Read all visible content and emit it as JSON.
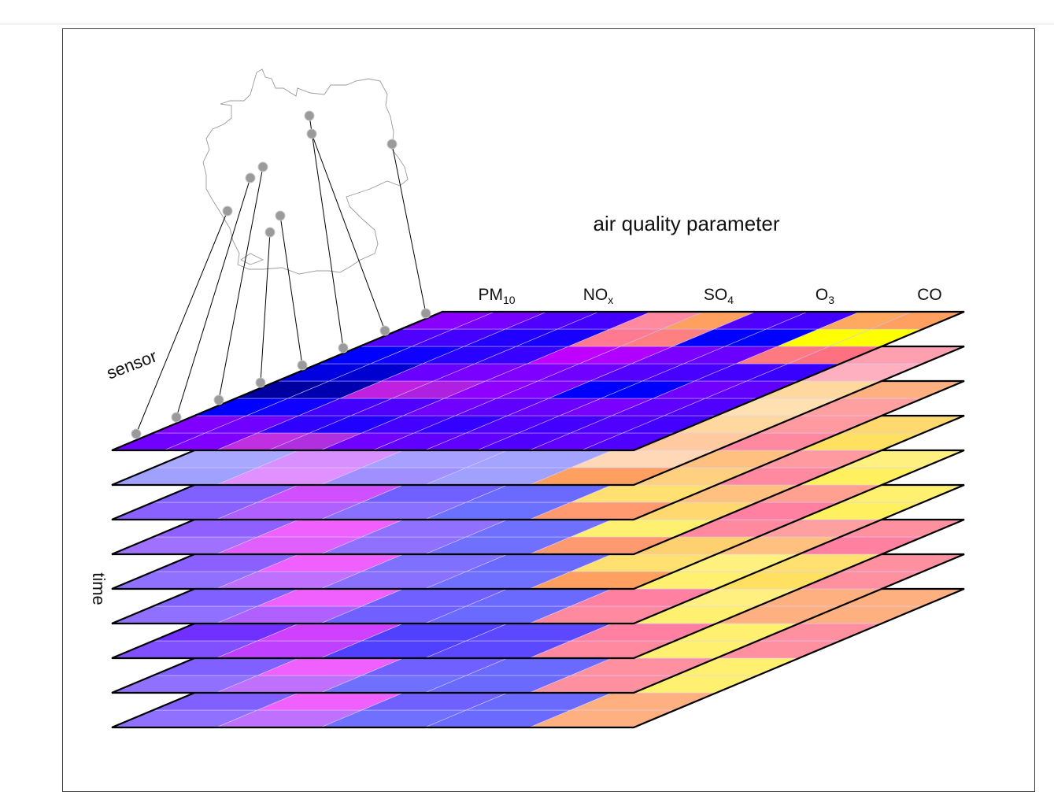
{
  "figure": {
    "title": "air quality parameter",
    "axis_sensor": "sensor",
    "axis_time": "time",
    "parameters": [
      {
        "base": "PM",
        "sub": "10"
      },
      {
        "base": "NO",
        "sub": "x"
      },
      {
        "base": "SO",
        "sub": "4"
      },
      {
        "base": "O",
        "sub": "3"
      },
      {
        "base": "CO",
        "sub": ""
      }
    ],
    "map": "Germany outline with sensor locations",
    "colors": {
      "low": "#0000ff",
      "mid": "#ff00ff",
      "high": "#ffff00",
      "outline": "#000000"
    }
  },
  "top_layer": {
    "rows": [
      [
        [
          "#8a00ff",
          "#7700ff"
        ],
        [
          "#5000ff",
          "#4400ff"
        ],
        [
          "#ff8aa0",
          "#ffa060"
        ],
        [
          "#5000ff",
          "#4400ff"
        ],
        [
          "#ffa860",
          "#ffa060"
        ]
      ],
      [
        [
          "#5000ff",
          "#4400ff"
        ],
        [
          "#2200ff",
          "#1800ff"
        ],
        [
          "#ff7a90",
          "#ff8080"
        ],
        [
          "#0000ff",
          "#0000ff"
        ],
        [
          "#ffff00",
          "#ffff00"
        ]
      ],
      [
        [
          "#0000ff",
          "#1000ff"
        ],
        [
          "#2a00ff",
          "#3800ff"
        ],
        [
          "#c000ff",
          "#b000ff"
        ],
        [
          "#7a00ff",
          "#6a00ff"
        ],
        [
          "#ff7a80",
          "#ff7080"
        ]
      ],
      [
        [
          "#0000e0",
          "#0000d0"
        ],
        [
          "#6a00ff",
          "#7a00ff"
        ],
        [
          "#8000ff",
          "#7000ff"
        ],
        [
          "#5400ff",
          "#4800ff"
        ],
        [
          "#4400ff",
          "#3800ff"
        ]
      ],
      [
        [
          "#0000a0",
          "#0000b0"
        ],
        [
          "#c020e0",
          "#b020e0"
        ],
        [
          "#9000ff",
          "#8000ff"
        ],
        [
          "#0000ff",
          "#0000ff"
        ],
        [
          "#7000ff",
          "#6000ff"
        ]
      ],
      [
        [
          "#0000ff",
          "#1000ff"
        ],
        [
          "#4400ff",
          "#5000ff"
        ],
        [
          "#7000ff",
          "#6000ff"
        ],
        [
          "#6a00ff",
          "#7a00ff"
        ],
        [
          "#6000ff",
          "#5000ff"
        ]
      ],
      [
        [
          "#8000ff",
          "#7000ff"
        ],
        [
          "#3000ff",
          "#2000ff"
        ],
        [
          "#4400ff",
          "#3400ff"
        ],
        [
          "#5000ff",
          "#4400ff"
        ],
        [
          "#5000ff",
          "#4400ff"
        ]
      ],
      [
        [
          "#7000ff",
          "#8000ff"
        ],
        [
          "#c030e0",
          "#b030e0"
        ],
        [
          "#7000ff",
          "#6000ff"
        ],
        [
          "#6000ff",
          "#5000ff"
        ],
        [
          "#6000ff",
          "#5000ff"
        ]
      ]
    ]
  },
  "time_layers": [
    {
      "rows": [
        [
          "#a0a0ff",
          "#e090ff",
          "#a090ff",
          "#a0a0ff",
          "#9a98ff"
        ],
        [
          "#a8a8ff",
          "#d890ff",
          "#a8a0ff",
          "#a4a4ff",
          "#9090ff"
        ]
      ],
      "tail": [
        "#ffa060",
        "#ffd8b8",
        "#ffcaa0",
        "#ffd8a0",
        "#ffe0b0",
        "#ffd8a0",
        "#ffb0c0",
        "#ffa0b0"
      ]
    },
    {
      "rows": [
        [
          "#8a60ff",
          "#b060ff",
          "#8a70ff",
          "#6a70ff",
          "#8060ff"
        ],
        [
          "#8060ff",
          "#d050ff",
          "#7060ff",
          "#6a6aff",
          "#8070ff"
        ]
      ],
      "tail": [
        "#ff9a70",
        "#ffe070",
        "#ffd080",
        "#ffc080",
        "#ff8aa0",
        "#ff9aa0",
        "#ffa0a0",
        "#ffb080"
      ]
    },
    {
      "rows": [
        [
          "#a070ff",
          "#e060ff",
          "#9070ff",
          "#7070ff",
          "#9070ff"
        ],
        [
          "#9060ff",
          "#f060ff",
          "#9070ff",
          "#7070ff",
          "#9060ff"
        ]
      ],
      "tail": [
        "#ff9a70",
        "#fff070",
        "#ffd870",
        "#ffc080",
        "#ff8aa0",
        "#ff9aa0",
        "#ffe060",
        "#ffd870"
      ]
    },
    {
      "rows": [
        [
          "#9070ff",
          "#c070ff",
          "#8a70ff",
          "#7070ff",
          "#9070ff"
        ],
        [
          "#8a60ff",
          "#f060ff",
          "#8070ff",
          "#6a6aff",
          "#9060ff"
        ]
      ],
      "tail": [
        "#ffa060",
        "#ffe070",
        "#ffd070",
        "#ff8aa0",
        "#ff80a0",
        "#ffa090",
        "#fff060",
        "#fff080"
      ]
    },
    {
      "rows": [
        [
          "#9070ff",
          "#b060ff",
          "#7060ff",
          "#6a6aff",
          "#8060ff"
        ],
        [
          "#8060ff",
          "#f060ff",
          "#7060ff",
          "#6a6aff",
          "#9060ff"
        ]
      ],
      "tail": [
        "#ff8aa0",
        "#ff80a0",
        "#fff070",
        "#fff080",
        "#ffc080",
        "#ffa0a0",
        "#fff060",
        "#fff070"
      ]
    },
    {
      "rows": [
        [
          "#8050ff",
          "#c040ff",
          "#5040ff",
          "#5c48ff",
          "#7040ff"
        ],
        [
          "#7030ff",
          "#d040ff",
          "#5040ff",
          "#5c48ff",
          "#7040ff"
        ]
      ],
      "tail": [
        "#ff8aa0",
        "#ff80a0",
        "#fff070",
        "#fff080",
        "#ffe060",
        "#ffe070",
        "#ff80a0",
        "#ff90a0"
      ]
    },
    {
      "rows": [
        [
          "#9070ff",
          "#c070ff",
          "#7070ff",
          "#6a6aff",
          "#8060ff"
        ],
        [
          "#8060ff",
          "#f060ff",
          "#7060ff",
          "#6a6aff",
          "#8060ff"
        ]
      ],
      "tail": [
        "#ff90a0",
        "#ff90a0",
        "#fff070",
        "#fff070",
        "#ffb080",
        "#ffb080",
        "#ff90a0",
        "#ff90a0"
      ]
    },
    {
      "rows": [
        [
          "#9070ff",
          "#c070ff",
          "#7070ff",
          "#6a6aff",
          "#8060ff"
        ],
        [
          "#8060ff",
          "#f060ff",
          "#7060ff",
          "#6a6aff",
          "#8060ff"
        ]
      ],
      "tail": [
        "#ffb080",
        "#ffb080",
        "#fff070",
        "#fff070",
        "#ff90a0",
        "#ff90a0",
        "#ffb080",
        "#ffb080"
      ]
    }
  ]
}
